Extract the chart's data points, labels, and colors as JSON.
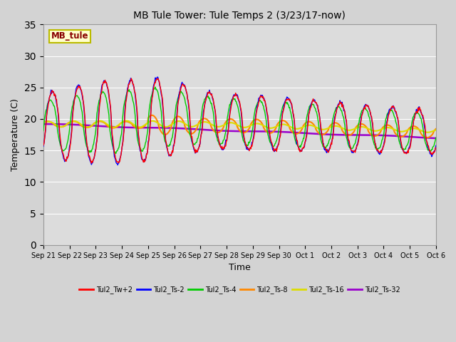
{
  "title": "MB Tule Tower: Tule Temps 2 (3/23/17-now)",
  "xlabel": "Time",
  "ylabel": "Temperature (C)",
  "ylim": [
    0,
    35
  ],
  "yticks": [
    0,
    5,
    10,
    15,
    20,
    25,
    30,
    35
  ],
  "fig_bg": "#d3d3d3",
  "plot_bg": "#dcdcdc",
  "grid_color": "#ffffff",
  "series_colors": [
    "#ff0000",
    "#0000ff",
    "#00cc00",
    "#ff8800",
    "#dddd00",
    "#9900cc"
  ],
  "series_labels": [
    "Tul2_Tw+2",
    "Tul2_Ts-2",
    "Tul2_Ts-4",
    "Tul2_Ts-8",
    "Tul2_Ts-16",
    "Tul2_Ts-32"
  ],
  "annotation_text": "MB_tule",
  "annotation_color": "#880000",
  "annotation_bg": "#ffffcc",
  "annotation_border": "#bbbb00",
  "xtick_labels": [
    "Sep 21",
    "Sep 22",
    "Sep 23",
    "Sep 24",
    "Sep 25",
    "Sep 26",
    "Sep 27",
    "Sep 28",
    "Sep 29",
    "Sep 30",
    "Oct 1",
    "Oct 2",
    "Oct 3",
    "Oct 4",
    "Oct 5",
    "Oct 6"
  ]
}
